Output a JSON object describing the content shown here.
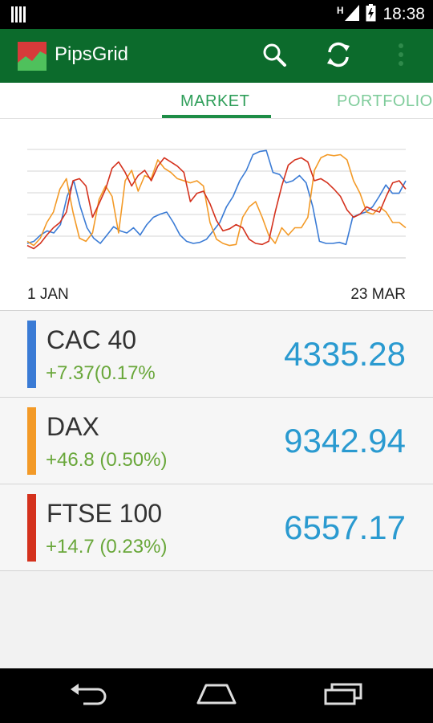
{
  "status_bar": {
    "time": "18:38",
    "network_label": "H"
  },
  "app": {
    "title": "PipsGrid",
    "colors": {
      "app_bar": "#0c6b2c",
      "accent": "#2e9e59"
    }
  },
  "toolbar": {
    "icons": [
      "search-icon",
      "refresh-icon",
      "overflow-menu-icon"
    ]
  },
  "tabs": [
    {
      "label": "MARKET",
      "selected": true
    },
    {
      "label": "PORTFOLIO",
      "selected": false
    }
  ],
  "chart_data": {
    "type": "line",
    "x_start_label": "1 JAN",
    "x_end_label": "23 MAR",
    "gridlines": 6,
    "series": [
      {
        "name": "CAC 40",
        "color": "#3a7bd5",
        "values": [
          10,
          12,
          18,
          22,
          20,
          28,
          55,
          70,
          45,
          25,
          15,
          10,
          18,
          26,
          22,
          20,
          25,
          18,
          28,
          35,
          38,
          40,
          30,
          18,
          12,
          10,
          11,
          14,
          22,
          30,
          45,
          55,
          70,
          80,
          95,
          98,
          99,
          78,
          76,
          68,
          70,
          75,
          68,
          45,
          12,
          10,
          10,
          11,
          9,
          35,
          38,
          40,
          45,
          55,
          66,
          58,
          58,
          70
        ]
      },
      {
        "name": "DAX",
        "color": "#f39a27",
        "values": [
          12,
          8,
          15,
          30,
          40,
          62,
          72,
          40,
          15,
          12,
          20,
          52,
          65,
          55,
          20,
          70,
          80,
          60,
          75,
          72,
          90,
          82,
          78,
          72,
          70,
          68,
          70,
          65,
          30,
          14,
          10,
          8,
          9,
          35,
          45,
          50,
          35,
          18,
          10,
          25,
          18,
          25,
          25,
          35,
          80,
          92,
          95,
          94,
          95,
          90,
          70,
          58,
          40,
          38,
          45,
          40,
          30,
          30,
          25
        ]
      },
      {
        "name": "FTSE 100",
        "color": "#d4311d",
        "values": [
          8,
          5,
          10,
          18,
          25,
          30,
          40,
          70,
          72,
          65,
          35,
          48,
          62,
          82,
          88,
          78,
          65,
          75,
          80,
          70,
          84,
          92,
          88,
          84,
          78,
          50,
          58,
          60,
          48,
          32,
          22,
          24,
          28,
          25,
          14,
          10,
          9,
          12,
          40,
          65,
          85,
          90,
          92,
          88,
          70,
          72,
          68,
          62,
          55,
          42,
          35,
          38,
          45,
          42,
          40,
          55,
          68,
          70,
          62
        ]
      }
    ]
  },
  "indices": [
    {
      "name": "CAC 40",
      "change": "+7.37(0.17%",
      "value": "4335.28",
      "color": "#3a7bd5"
    },
    {
      "name": "DAX",
      "change": "+46.8 (0.50%)",
      "value": "9342.94",
      "color": "#f39a27"
    },
    {
      "name": "FTSE 100",
      "change": "+14.7 (0.23%)",
      "value": "6557.17",
      "color": "#d4311d"
    }
  ],
  "nav_bar": {
    "icons": [
      "back-icon",
      "home-icon",
      "recents-icon"
    ]
  }
}
